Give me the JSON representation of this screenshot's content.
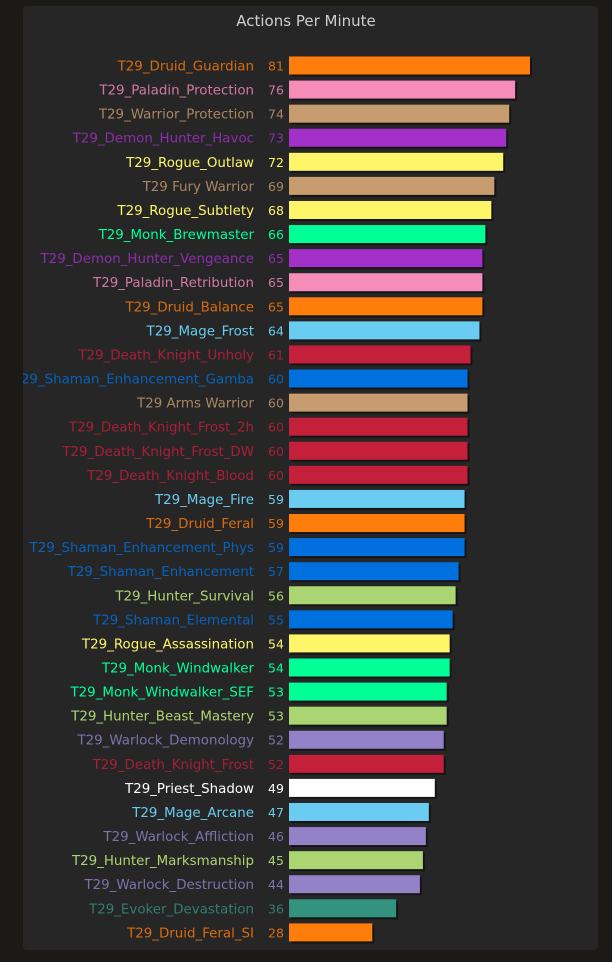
{
  "chart_data": {
    "type": "bar",
    "orientation": "horizontal",
    "title": "Actions Per Minute",
    "xlabel": "",
    "ylabel": "",
    "xlim": [
      0,
      85
    ],
    "grid": false,
    "legend": "none",
    "bars": [
      {
        "label": "T29_Druid_Guardian",
        "value": 81,
        "color": "#ff7d0a"
      },
      {
        "label": "T29_Paladin_Protection",
        "value": 76,
        "color": "#f58cba"
      },
      {
        "label": "T29_Warrior_Protection",
        "value": 74,
        "color": "#c79c6e"
      },
      {
        "label": "T29_Demon_Hunter_Havoc",
        "value": 73,
        "color": "#a330c9"
      },
      {
        "label": "T29_Rogue_Outlaw",
        "value": 72,
        "color": "#fff569"
      },
      {
        "label": "T29 Fury Warrior",
        "value": 69,
        "color": "#c79c6e"
      },
      {
        "label": "T29_Rogue_Subtlety",
        "value": 68,
        "color": "#fff569"
      },
      {
        "label": "T29_Monk_Brewmaster",
        "value": 66,
        "color": "#00ff96"
      },
      {
        "label": "T29_Demon_Hunter_Vengeance",
        "value": 65,
        "color": "#a330c9"
      },
      {
        "label": "T29_Paladin_Retribution",
        "value": 65,
        "color": "#f58cba"
      },
      {
        "label": "T29_Druid_Balance",
        "value": 65,
        "color": "#ff7d0a"
      },
      {
        "label": "T29_Mage_Frost",
        "value": 64,
        "color": "#69ccf0"
      },
      {
        "label": "T29_Death_Knight_Unholy",
        "value": 61,
        "color": "#c41f3b"
      },
      {
        "label": "29_Shaman_Enhancement_Gamba",
        "value": 60,
        "color": "#0070de"
      },
      {
        "label": "T29 Arms Warrior",
        "value": 60,
        "color": "#c79c6e"
      },
      {
        "label": "T29_Death_Knight_Frost_2h",
        "value": 60,
        "color": "#c41f3b"
      },
      {
        "label": "T29_Death_Knight_Frost_DW",
        "value": 60,
        "color": "#c41f3b"
      },
      {
        "label": "T29_Death_Knight_Blood",
        "value": 60,
        "color": "#c41f3b"
      },
      {
        "label": "T29_Mage_Fire",
        "value": 59,
        "color": "#69ccf0"
      },
      {
        "label": "T29_Druid_Feral",
        "value": 59,
        "color": "#ff7d0a"
      },
      {
        "label": "T29_Shaman_Enhancement_Phys",
        "value": 59,
        "color": "#0070de"
      },
      {
        "label": "T29_Shaman_Enhancement",
        "value": 57,
        "color": "#0070de"
      },
      {
        "label": "T29_Hunter_Survival",
        "value": 56,
        "color": "#abd473"
      },
      {
        "label": "T29_Shaman_Elemental",
        "value": 55,
        "color": "#0070de"
      },
      {
        "label": "T29_Rogue_Assassination",
        "value": 54,
        "color": "#fff569"
      },
      {
        "label": "T29_Monk_Windwalker",
        "value": 54,
        "color": "#00ff96"
      },
      {
        "label": "T29_Monk_Windwalker_SEF",
        "value": 53,
        "color": "#00ff96"
      },
      {
        "label": "T29_Hunter_Beast_Mastery",
        "value": 53,
        "color": "#abd473"
      },
      {
        "label": "T29_Warlock_Demonology",
        "value": 52,
        "color": "#9482c9"
      },
      {
        "label": "T29_Death_Knight_Frost",
        "value": 52,
        "color": "#c41f3b"
      },
      {
        "label": "T29_Priest_Shadow",
        "value": 49,
        "color": "#ffffff"
      },
      {
        "label": "T29_Mage_Arcane",
        "value": 47,
        "color": "#69ccf0"
      },
      {
        "label": "T29_Warlock_Affliction",
        "value": 46,
        "color": "#9482c9"
      },
      {
        "label": "T29_Hunter_Marksmanship",
        "value": 45,
        "color": "#abd473"
      },
      {
        "label": "T29_Warlock_Destruction",
        "value": 44,
        "color": "#9482c9"
      },
      {
        "label": "T29_Evoker_Devastation",
        "value": 36,
        "color": "#33937f"
      },
      {
        "label": "T29_Druid_Feral_SI",
        "value": 28,
        "color": "#ff7d0a"
      }
    ]
  }
}
